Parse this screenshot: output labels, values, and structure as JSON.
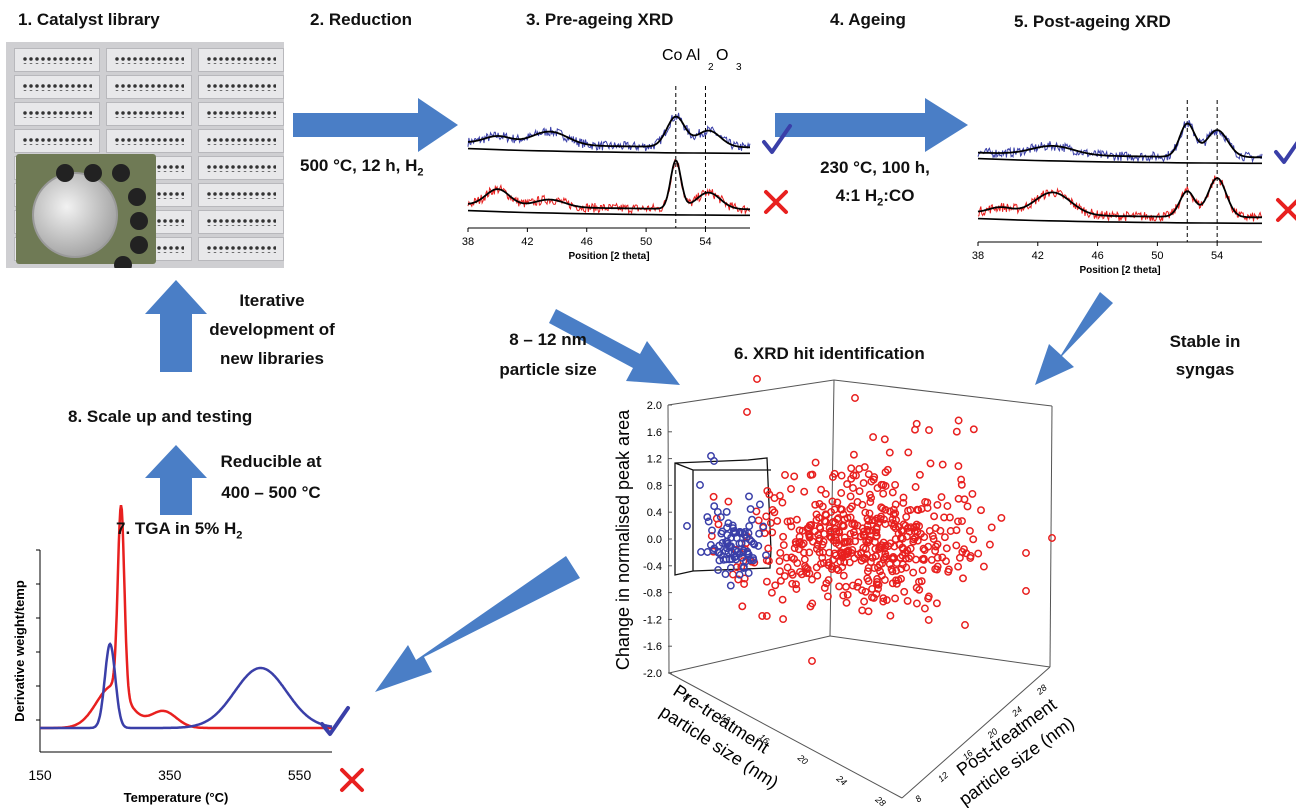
{
  "steps": {
    "s1": "1. Catalyst library",
    "s2": "2. Reduction",
    "s3": "3. Pre-ageing XRD",
    "s4": "4. Ageing",
    "s5": "5. Post-ageing XRD",
    "s6": "6. XRD hit identification",
    "s7": "7. TGA in 5% H",
    "s7_sub": "2",
    "s8": "8. Scale up and testing"
  },
  "conditions": {
    "reduction": "500 °C, 12 h, H",
    "reduction_sub": "2",
    "ageing_line1": "230 °C, 100 h,",
    "ageing_line2_a": "4:1 H",
    "ageing_line2_sub": "2",
    "ageing_line2_b": ":CO",
    "particle_line1": "8 – 12 nm",
    "particle_line2": "particle size",
    "stable_line1": "Stable in",
    "stable_line2": "syngas",
    "iterative_line1": "Iterative",
    "iterative_line2": "development of",
    "iterative_line3": "new libraries",
    "reducible_line1": "Reducible at",
    "reducible_line2": "400 – 500 °C"
  },
  "marks": {
    "check": "✓",
    "cross": "✕"
  },
  "colors": {
    "arrow": "#4a7ec6",
    "blue": "#3a3fa8",
    "red": "#e8201f",
    "black": "#000000"
  },
  "chart_data": [
    {
      "type": "line",
      "panel": "pre-ageing-xrd",
      "xlabel": "Position [2 theta]",
      "ticks": [
        "38",
        "42",
        "46",
        "50",
        "54"
      ],
      "xlim": [
        38,
        57
      ],
      "annotation": {
        "a": "Co Al",
        "sub1": "2",
        "b": "O",
        "sub2": "3"
      },
      "series": [
        {
          "color": "blue",
          "verdict": "check",
          "peaks": [
            {
              "x": 40.0,
              "h": 0.25,
              "w": 0.9
            },
            {
              "x": 43.5,
              "h": 0.45,
              "w": 1.2
            },
            {
              "x": 52.0,
              "h": 1.0,
              "w": 0.6
            },
            {
              "x": 54.2,
              "h": 0.55,
              "w": 0.8
            }
          ]
        },
        {
          "color": "red",
          "verdict": "cross",
          "peaks": [
            {
              "x": 40.0,
              "h": 0.55,
              "w": 0.8
            },
            {
              "x": 43.5,
              "h": 0.25,
              "w": 1.0
            },
            {
              "x": 52.0,
              "h": 1.6,
              "w": 0.35
            },
            {
              "x": 54.2,
              "h": 0.55,
              "w": 0.8
            }
          ]
        }
      ],
      "ref_lines": [
        52.0,
        54.0
      ]
    },
    {
      "type": "line",
      "panel": "post-ageing-xrd",
      "xlabel": "Position [2 theta]",
      "ticks": [
        "38",
        "42",
        "46",
        "50",
        "54"
      ],
      "xlim": [
        38,
        57
      ],
      "series": [
        {
          "color": "blue",
          "verdict": "check",
          "peaks": [
            {
              "x": 43.0,
              "h": 0.3,
              "w": 1.4
            },
            {
              "x": 52.0,
              "h": 1.1,
              "w": 0.5
            },
            {
              "x": 54.0,
              "h": 0.9,
              "w": 0.7
            }
          ]
        },
        {
          "color": "red",
          "verdict": "cross",
          "peaks": [
            {
              "x": 39.5,
              "h": 0.2,
              "w": 0.8
            },
            {
              "x": 43.0,
              "h": 0.75,
              "w": 1.2
            },
            {
              "x": 52.0,
              "h": 0.85,
              "w": 0.5
            },
            {
              "x": 54.0,
              "h": 1.3,
              "w": 0.6
            }
          ]
        }
      ],
      "ref_lines": [
        52.0,
        54.0
      ]
    },
    {
      "type": "line",
      "panel": "tga",
      "xlabel": "Temperature (°C)",
      "ylabel": "Derivative weight/temp",
      "ticks": [
        "150",
        "350",
        "550"
      ],
      "tick_values": [
        150,
        350,
        550
      ],
      "xlim": [
        150,
        600
      ],
      "series": [
        {
          "color": "red",
          "verdict": "cross",
          "peaks": [
            {
              "x": 262,
              "h": 0.35,
              "w": 25
            },
            {
              "x": 275,
              "h": 1.55,
              "w": 5
            },
            {
              "x": 340,
              "h": 0.14,
              "w": 20
            }
          ]
        },
        {
          "color": "blue",
          "verdict": "check",
          "peaks": [
            {
              "x": 258,
              "h": 0.7,
              "w": 8
            },
            {
              "x": 490,
              "h": 0.5,
              "w": 40
            }
          ]
        }
      ]
    },
    {
      "type": "scatter",
      "panel": "xrd-hit-identification-3d",
      "zlabel": "Change in normalised peak area",
      "xlabel_line1": "Pre-treatment",
      "xlabel_line2": "particle size (nm)",
      "ylabel_line1": "Post-treatment",
      "ylabel_line2": "particle size (nm)",
      "z_ticks": [
        "2.0",
        "1.6",
        "1.2",
        "0.8",
        "0.4",
        "0.0",
        "-0.4",
        "-0.8",
        "-1.2",
        "-1.6",
        "-2.0"
      ],
      "z_tick_values": [
        2.0,
        1.6,
        1.2,
        0.8,
        0.4,
        0.0,
        -0.4,
        -0.8,
        -1.2,
        -1.6,
        -2.0
      ],
      "x_ticks": [
        "8",
        "12",
        "16",
        "20",
        "24",
        "28"
      ],
      "y_ticks": [
        "8",
        "12",
        "16",
        "20",
        "24",
        "28"
      ],
      "series": [
        {
          "name": "",
          "color": "red",
          "count": 520
        },
        {
          "name": "",
          "color": "blue",
          "count": 90
        }
      ]
    }
  ]
}
